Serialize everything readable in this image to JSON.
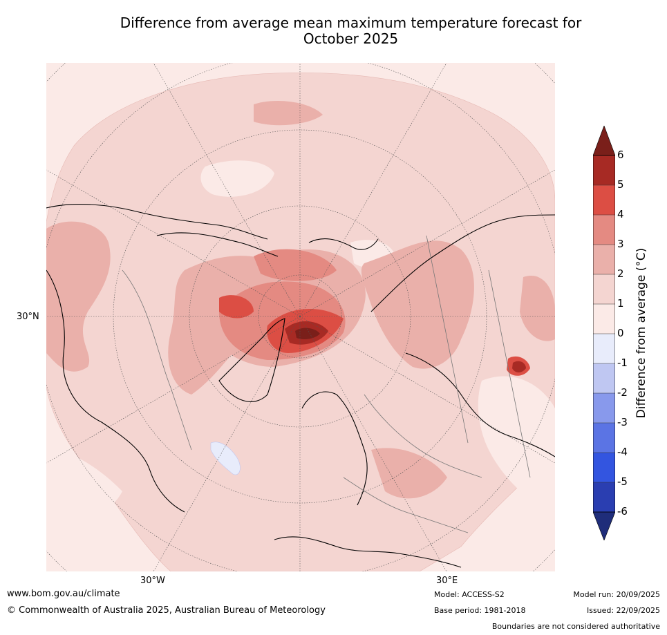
{
  "title": {
    "line1": "Difference from average mean maximum temperature forecast for",
    "line2": "October 2025"
  },
  "map": {
    "labels": {
      "lat30": "30°N",
      "lon30w": "30°W",
      "lon30e": "30°E"
    },
    "palette": {
      "neg6": "#1f2d7a",
      "neg5": "#2a3eb1",
      "neg4": "#3355e0",
      "neg3": "#5b74e4",
      "neg2": "#8899ec",
      "neg1": "#bfc7f2",
      "neg0": "#e8ecfb",
      "pos0": "#fbeae7",
      "pos1": "#f4d5d1",
      "pos2": "#eab0aa",
      "pos3": "#e48a82",
      "pos4": "#dc4e44",
      "pos5": "#a72a24",
      "pos6": "#7a1f1a"
    }
  },
  "colorbar": {
    "ticks": [
      "6",
      "5",
      "4",
      "3",
      "2",
      "1",
      "0",
      "-1",
      "-2",
      "-3",
      "-4",
      "-5",
      "-6"
    ],
    "label": "Difference from average (°C)"
  },
  "footer": {
    "website": "www.bom.gov.au/climate",
    "copyright": "© Commonwealth of Australia 2025, Australian Bureau of Meteorology",
    "model": "Model: ACCESS-S2",
    "base_period": "Base period: 1981-2018",
    "model_run": "Model run: 20/09/2025",
    "issued": "Issued: 22/09/2025",
    "disclaimer": "Boundaries are not considered authoritative"
  }
}
